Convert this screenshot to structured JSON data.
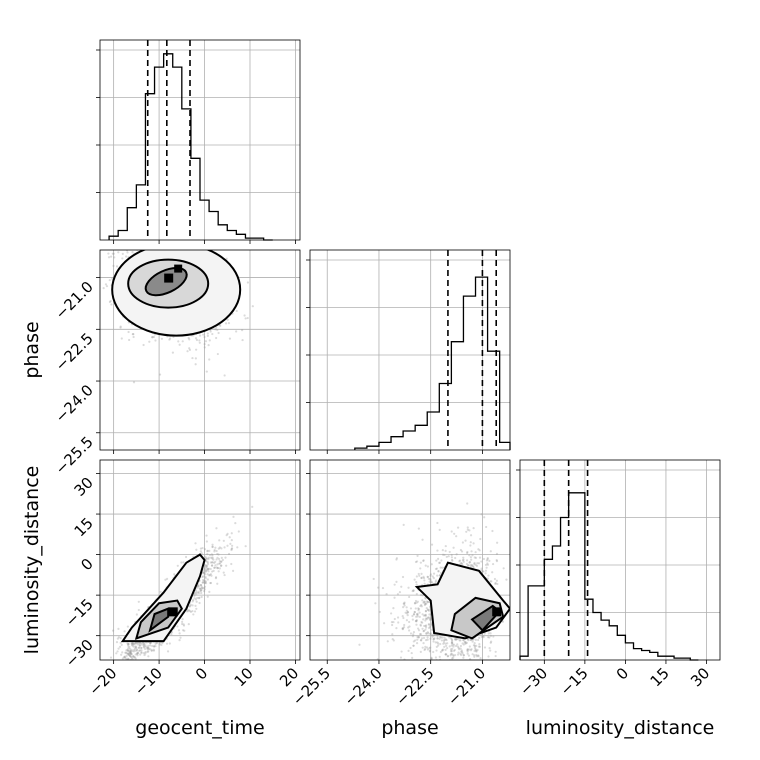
{
  "chart_data": {
    "type": "corner",
    "parameters": [
      "geocent_time",
      "phase",
      "luminosity_distance"
    ],
    "axis_labels": {
      "x": [
        "geocent_time",
        "phase",
        "luminosity_distance"
      ],
      "y": [
        "phase",
        "luminosity_distance"
      ]
    },
    "ranges": {
      "geocent_time": [
        -23,
        21
      ],
      "phase": [
        -26.0,
        -20.2
      ],
      "luminosity_distance": [
        -39,
        35
      ]
    },
    "ticks": {
      "geocent_time": [
        -20,
        -10,
        0,
        10,
        20
      ],
      "phase": [
        -25.5,
        -24.0,
        -22.5,
        -21.0
      ],
      "luminosity_distance": [
        -30,
        -15,
        0,
        15,
        30
      ]
    },
    "tick_labels": {
      "geocent_time": [
        "−20",
        "−10",
        "0",
        "10",
        "20"
      ],
      "phase": [
        "−25.5",
        "−24.0",
        "−22.5",
        "−21.0"
      ],
      "luminosity_distance": [
        "−30",
        "−15",
        "0",
        "15",
        "30"
      ]
    },
    "quantiles": {
      "geocent_time": [
        -12.5,
        -8.3,
        -3.2
      ],
      "phase": [
        -22.0,
        -21.0,
        -20.6
      ],
      "luminosity_distance": [
        -30.0,
        -21.0,
        -14.0
      ]
    },
    "histograms": {
      "geocent_time": {
        "edges": [
          -21,
          -19,
          -17,
          -15,
          -13,
          -11,
          -9,
          -7,
          -5,
          -3,
          -1,
          1,
          3,
          5,
          7,
          9,
          11,
          13,
          15
        ],
        "counts": [
          0.02,
          0.05,
          0.17,
          0.29,
          0.77,
          0.91,
          0.98,
          0.91,
          0.69,
          0.43,
          0.21,
          0.15,
          0.08,
          0.05,
          0.03,
          0.01,
          0.01,
          0.0
        ]
      },
      "phase": {
        "edges": [
          -24.7,
          -24.35,
          -24.0,
          -23.65,
          -23.3,
          -22.95,
          -22.6,
          -22.25,
          -21.9,
          -21.55,
          -21.2,
          -20.85,
          -20.5,
          -20.2
        ],
        "counts": [
          0.01,
          0.02,
          0.04,
          0.07,
          0.1,
          0.13,
          0.2,
          0.35,
          0.57,
          0.81,
          0.91,
          0.52,
          0.04
        ]
      },
      "luminosity_distance": {
        "edges": [
          -39,
          -36,
          -33,
          -30,
          -27,
          -24,
          -21,
          -18,
          -15,
          -12,
          -9,
          -6,
          -3,
          0,
          3,
          6,
          9,
          12,
          15,
          18,
          21,
          24,
          27
        ],
        "counts": [
          0.02,
          0.39,
          0.39,
          0.53,
          0.6,
          0.75,
          0.88,
          0.88,
          0.32,
          0.25,
          0.21,
          0.18,
          0.13,
          0.09,
          0.06,
          0.05,
          0.04,
          0.02,
          0.02,
          0.01,
          0.01,
          0.0
        ]
      }
    },
    "scatter": {
      "phase_vs_geocent_time": {
        "center": [
          -7,
          -21.1
        ],
        "spread": [
          5.5,
          0.7
        ],
        "density_peak": [
          -8.5,
          -20.9
        ]
      },
      "luminosity_distance_vs_geocent_time": {
        "center": [
          -6,
          -14
        ],
        "correlation": 0.93,
        "density_peak": [
          -7,
          -21
        ]
      },
      "luminosity_distance_vs_phase": {
        "center": [
          -21.6,
          -15
        ],
        "spread": [
          1.0,
          10
        ],
        "density_peak": [
          -20.5,
          -21
        ]
      }
    },
    "grid": true,
    "colors": {
      "histogram": "#000000",
      "contour": "#000000",
      "points": "#999999",
      "grid": "#b0b0b0"
    }
  }
}
